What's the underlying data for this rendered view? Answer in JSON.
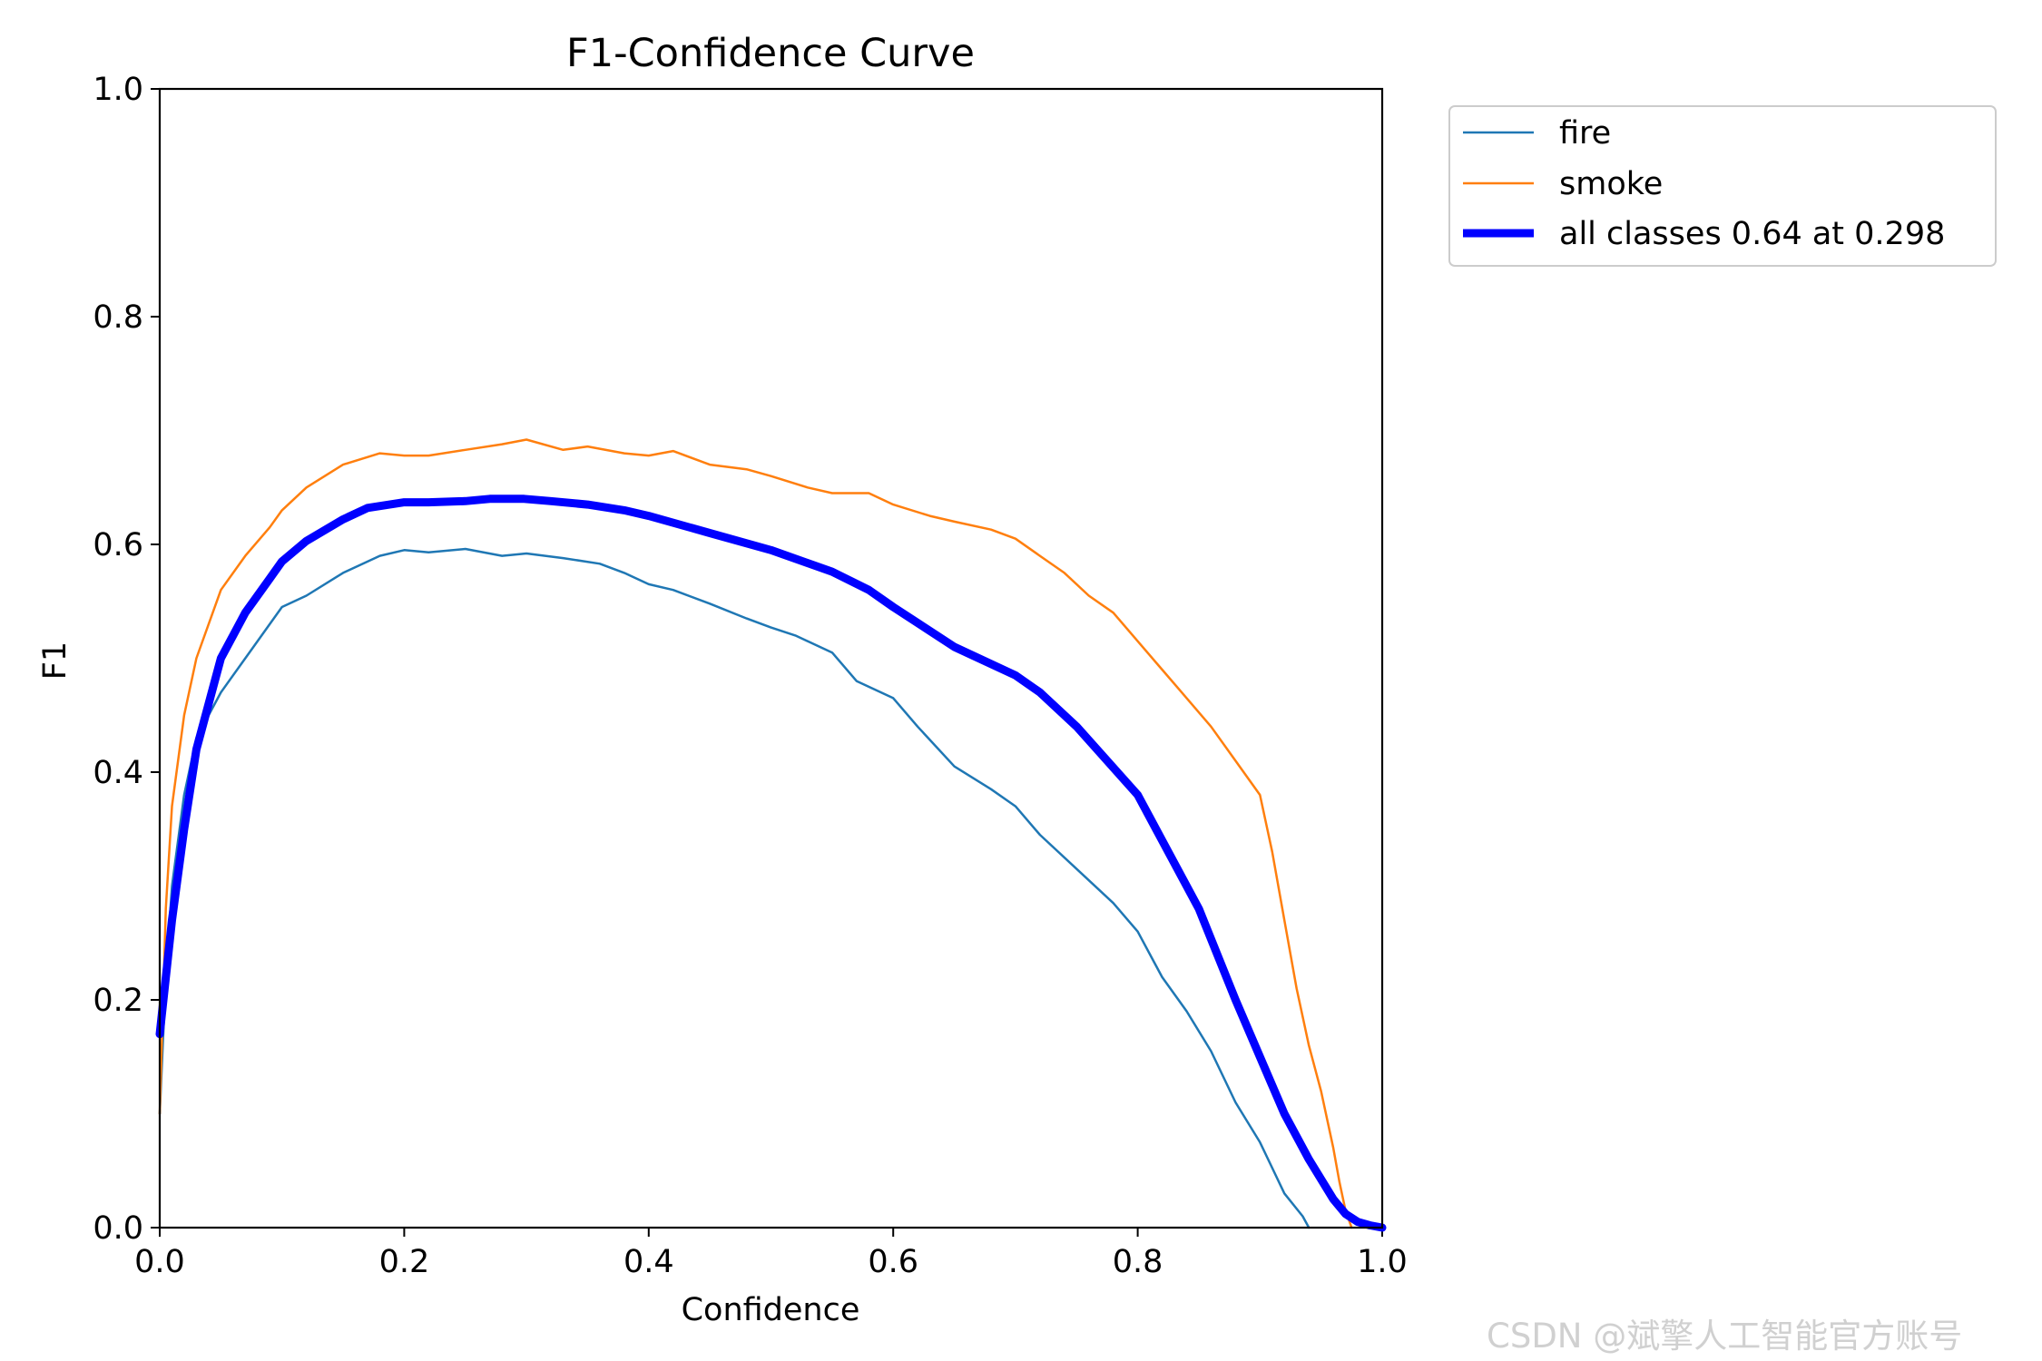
{
  "chart_data": {
    "type": "line",
    "title": "F1-Confidence Curve",
    "xlabel": "Confidence",
    "ylabel": "F1",
    "xlim": [
      0,
      1
    ],
    "ylim": [
      0,
      1
    ],
    "xticks": [
      "0.0",
      "0.2",
      "0.4",
      "0.6",
      "0.8",
      "1.0"
    ],
    "yticks": [
      "0.0",
      "0.2",
      "0.4",
      "0.6",
      "0.8",
      "1.0"
    ],
    "grid": false,
    "legend_position": "outside-top-right",
    "series": [
      {
        "name": "fire",
        "color": "#1f77b4",
        "style": "thin",
        "x": [
          0.0,
          0.005,
          0.01,
          0.02,
          0.03,
          0.05,
          0.07,
          0.09,
          0.1,
          0.12,
          0.15,
          0.18,
          0.2,
          0.22,
          0.25,
          0.28,
          0.3,
          0.33,
          0.36,
          0.38,
          0.4,
          0.42,
          0.45,
          0.48,
          0.5,
          0.52,
          0.55,
          0.57,
          0.6,
          0.62,
          0.65,
          0.68,
          0.7,
          0.72,
          0.75,
          0.78,
          0.8,
          0.82,
          0.84,
          0.86,
          0.88,
          0.9,
          0.92,
          0.935,
          0.94
        ],
        "values": [
          0.1,
          0.22,
          0.3,
          0.38,
          0.43,
          0.47,
          0.5,
          0.53,
          0.545,
          0.555,
          0.575,
          0.59,
          0.595,
          0.593,
          0.596,
          0.59,
          0.592,
          0.588,
          0.583,
          0.575,
          0.565,
          0.56,
          0.548,
          0.535,
          0.527,
          0.52,
          0.505,
          0.48,
          0.465,
          0.44,
          0.405,
          0.385,
          0.37,
          0.345,
          0.315,
          0.285,
          0.26,
          0.22,
          0.19,
          0.155,
          0.11,
          0.075,
          0.03,
          0.01,
          0.0
        ]
      },
      {
        "name": "smoke",
        "color": "#ff7f0e",
        "style": "thin",
        "x": [
          0.0,
          0.005,
          0.01,
          0.02,
          0.03,
          0.05,
          0.07,
          0.09,
          0.1,
          0.12,
          0.15,
          0.18,
          0.2,
          0.22,
          0.25,
          0.28,
          0.3,
          0.33,
          0.35,
          0.38,
          0.4,
          0.42,
          0.45,
          0.48,
          0.5,
          0.53,
          0.55,
          0.58,
          0.6,
          0.63,
          0.65,
          0.68,
          0.7,
          0.72,
          0.74,
          0.76,
          0.78,
          0.8,
          0.82,
          0.84,
          0.86,
          0.88,
          0.9,
          0.91,
          0.92,
          0.93,
          0.94,
          0.95,
          0.96,
          0.965,
          0.97,
          0.975
        ],
        "values": [
          0.1,
          0.28,
          0.37,
          0.45,
          0.5,
          0.56,
          0.59,
          0.615,
          0.63,
          0.65,
          0.67,
          0.68,
          0.678,
          0.678,
          0.683,
          0.688,
          0.692,
          0.683,
          0.686,
          0.68,
          0.678,
          0.682,
          0.67,
          0.666,
          0.66,
          0.65,
          0.645,
          0.645,
          0.635,
          0.625,
          0.62,
          0.613,
          0.605,
          0.59,
          0.575,
          0.555,
          0.54,
          0.515,
          0.49,
          0.465,
          0.44,
          0.41,
          0.38,
          0.33,
          0.27,
          0.21,
          0.16,
          0.12,
          0.07,
          0.04,
          0.015,
          0.0
        ]
      },
      {
        "name": "all classes 0.64 at 0.298",
        "color": "#0000ff",
        "style": "thick",
        "x": [
          0.0,
          0.01,
          0.02,
          0.03,
          0.05,
          0.07,
          0.09,
          0.1,
          0.12,
          0.15,
          0.17,
          0.2,
          0.22,
          0.25,
          0.27,
          0.298,
          0.32,
          0.35,
          0.38,
          0.4,
          0.45,
          0.5,
          0.55,
          0.58,
          0.6,
          0.65,
          0.7,
          0.72,
          0.75,
          0.8,
          0.82,
          0.85,
          0.88,
          0.9,
          0.92,
          0.94,
          0.96,
          0.97,
          0.98,
          0.99,
          1.0
        ],
        "values": [
          0.17,
          0.27,
          0.35,
          0.42,
          0.5,
          0.54,
          0.57,
          0.585,
          0.603,
          0.622,
          0.632,
          0.637,
          0.637,
          0.638,
          0.64,
          0.64,
          0.638,
          0.635,
          0.63,
          0.625,
          0.61,
          0.595,
          0.576,
          0.56,
          0.545,
          0.51,
          0.485,
          0.47,
          0.44,
          0.38,
          0.34,
          0.28,
          0.2,
          0.15,
          0.1,
          0.06,
          0.025,
          0.012,
          0.005,
          0.002,
          0.0
        ]
      }
    ]
  },
  "watermark": "CSDN @斌擎人工智能官方账号"
}
